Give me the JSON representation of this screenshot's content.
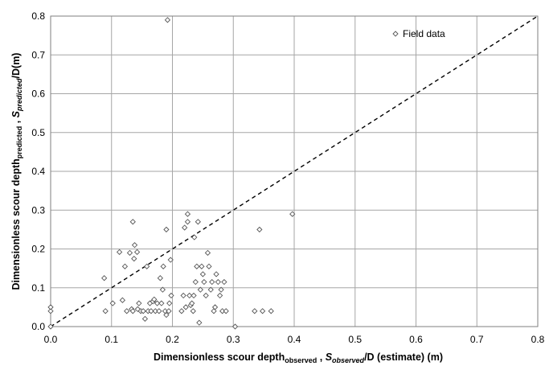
{
  "chart_data": {
    "type": "scatter",
    "title": "",
    "xlabel": {
      "main": "Dimensionless scour depth",
      "main_sub": "observed",
      "sep": " , ",
      "var": "S",
      "var_sub": "observed",
      "tail": "/D (estimate) (m)"
    },
    "ylabel": {
      "main": "Dimensionless scour depth",
      "main_sub": "predicted",
      "sep": " , ",
      "var": "S",
      "var_sub": "predicted",
      "tail": "/D(m)"
    },
    "xlim": [
      0,
      0.8
    ],
    "ylim": [
      0,
      0.8
    ],
    "x_tick_labels": [
      "0.0",
      "0.1",
      "0.2",
      "0.3",
      "0.4",
      "0.5",
      "0.6",
      "0.7",
      "0.8"
    ],
    "y_tick_labels": [
      "0.0",
      "0.1",
      "0.2",
      "0.3",
      "0.4",
      "0.5",
      "0.6",
      "0.7",
      "0.8"
    ],
    "grid": true,
    "legend_position": "top-right",
    "reference_line": {
      "style": "dashed",
      "from": [
        0,
        0
      ],
      "to": [
        0.8,
        0.8
      ]
    },
    "marker": {
      "shape": "diamond",
      "fill": "#ffffff",
      "stroke": "#555555"
    },
    "series": [
      {
        "name": "Field data",
        "points": [
          [
            0.0,
            0.04
          ],
          [
            0.0,
            0.05
          ],
          [
            0.0,
            0.0
          ],
          [
            0.088,
            0.125
          ],
          [
            0.09,
            0.04
          ],
          [
            0.102,
            0.06
          ],
          [
            0.113,
            0.192
          ],
          [
            0.118,
            0.068
          ],
          [
            0.122,
            0.155
          ],
          [
            0.125,
            0.04
          ],
          [
            0.13,
            0.19
          ],
          [
            0.133,
            0.045
          ],
          [
            0.135,
            0.27
          ],
          [
            0.135,
            0.04
          ],
          [
            0.137,
            0.175
          ],
          [
            0.138,
            0.21
          ],
          [
            0.142,
            0.192
          ],
          [
            0.143,
            0.045
          ],
          [
            0.145,
            0.06
          ],
          [
            0.148,
            0.04
          ],
          [
            0.152,
            0.04
          ],
          [
            0.155,
            0.02
          ],
          [
            0.158,
            0.155
          ],
          [
            0.16,
            0.04
          ],
          [
            0.163,
            0.06
          ],
          [
            0.165,
            0.04
          ],
          [
            0.168,
            0.065
          ],
          [
            0.17,
            0.07
          ],
          [
            0.172,
            0.04
          ],
          [
            0.175,
            0.06
          ],
          [
            0.178,
            0.04
          ],
          [
            0.18,
            0.125
          ],
          [
            0.182,
            0.06
          ],
          [
            0.184,
            0.095
          ],
          [
            0.185,
            0.155
          ],
          [
            0.188,
            0.04
          ],
          [
            0.19,
            0.03
          ],
          [
            0.19,
            0.25
          ],
          [
            0.192,
            0.79
          ],
          [
            0.194,
            0.04
          ],
          [
            0.195,
            0.06
          ],
          [
            0.197,
            0.172
          ],
          [
            0.198,
            0.08
          ],
          [
            0.215,
            0.04
          ],
          [
            0.218,
            0.08
          ],
          [
            0.22,
            0.255
          ],
          [
            0.222,
            0.05
          ],
          [
            0.225,
            0.27
          ],
          [
            0.225,
            0.29
          ],
          [
            0.228,
            0.08
          ],
          [
            0.23,
            0.055
          ],
          [
            0.232,
            0.06
          ],
          [
            0.234,
            0.04
          ],
          [
            0.235,
            0.08
          ],
          [
            0.236,
            0.23
          ],
          [
            0.238,
            0.115
          ],
          [
            0.24,
            0.155
          ],
          [
            0.242,
            0.27
          ],
          [
            0.244,
            0.01
          ],
          [
            0.246,
            0.095
          ],
          [
            0.248,
            0.155
          ],
          [
            0.25,
            0.135
          ],
          [
            0.252,
            0.115
          ],
          [
            0.255,
            0.08
          ],
          [
            0.258,
            0.19
          ],
          [
            0.26,
            0.155
          ],
          [
            0.263,
            0.095
          ],
          [
            0.265,
            0.115
          ],
          [
            0.268,
            0.04
          ],
          [
            0.27,
            0.05
          ],
          [
            0.272,
            0.135
          ],
          [
            0.275,
            0.115
          ],
          [
            0.278,
            0.08
          ],
          [
            0.28,
            0.095
          ],
          [
            0.282,
            0.04
          ],
          [
            0.285,
            0.115
          ],
          [
            0.288,
            0.04
          ],
          [
            0.303,
            0.0
          ],
          [
            0.335,
            0.04
          ],
          [
            0.343,
            0.25
          ],
          [
            0.348,
            0.04
          ],
          [
            0.362,
            0.04
          ],
          [
            0.397,
            0.29
          ]
        ]
      }
    ]
  }
}
